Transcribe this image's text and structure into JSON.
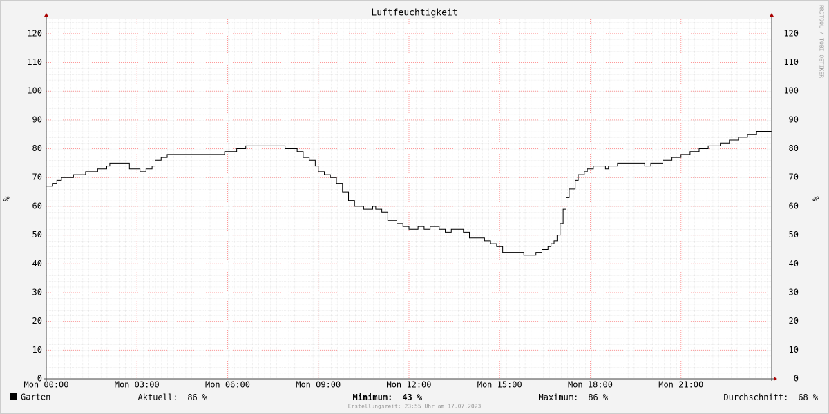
{
  "chart_data": {
    "type": "line",
    "title": "Luftfeuchtigkeit",
    "y_label": "%",
    "side_text": "RRDTOOL / TOBI OETIKER",
    "xlim": [
      0,
      24
    ],
    "xticks": [
      {
        "value": 0,
        "label": "Mon 00:00"
      },
      {
        "value": 3,
        "label": "Mon 03:00"
      },
      {
        "value": 6,
        "label": "Mon 06:00"
      },
      {
        "value": 9,
        "label": "Mon 09:00"
      },
      {
        "value": 12,
        "label": "Mon 12:00"
      },
      {
        "value": 15,
        "label": "Mon 15:00"
      },
      {
        "value": 18,
        "label": "Mon 18:00"
      },
      {
        "value": 21,
        "label": "Mon 21:00"
      }
    ],
    "ylim": [
      0,
      125
    ],
    "yticks": [
      0,
      10,
      20,
      30,
      40,
      50,
      60,
      70,
      80,
      90,
      100,
      110,
      120
    ],
    "grid": true,
    "step": true,
    "series": [
      {
        "name": "Garten",
        "color": "#000000",
        "x": [
          0,
          0.2,
          0.35,
          0.5,
          0.9,
          1.3,
          1.7,
          2.0,
          2.1,
          2.75,
          3.1,
          3.3,
          3.5,
          3.6,
          3.8,
          4.0,
          5.9,
          6.3,
          6.6,
          7.9,
          8.3,
          8.5,
          8.7,
          8.9,
          9.0,
          9.2,
          9.4,
          9.6,
          9.8,
          10.0,
          10.2,
          10.5,
          10.8,
          10.9,
          11.1,
          11.3,
          11.6,
          11.8,
          12.0,
          12.3,
          12.5,
          12.7,
          13.0,
          13.2,
          13.4,
          13.8,
          14.0,
          14.5,
          14.7,
          14.9,
          15.1,
          15.8,
          16.2,
          16.4,
          16.6,
          16.7,
          16.8,
          16.9,
          17.0,
          17.1,
          17.2,
          17.3,
          17.5,
          17.6,
          17.8,
          17.9,
          18.1,
          18.5,
          18.6,
          18.9,
          19.8,
          20.0,
          20.4,
          20.7,
          21.0,
          21.3,
          21.6,
          21.9,
          22.3,
          22.6,
          22.9,
          23.2,
          23.5,
          24.0
        ],
        "values": [
          67,
          68,
          69,
          70,
          71,
          72,
          73,
          74,
          75,
          73,
          72,
          73,
          74,
          76,
          77,
          78,
          79,
          80,
          81,
          80,
          79,
          77,
          76,
          74,
          72,
          71,
          70,
          68,
          65,
          62,
          60,
          59,
          60,
          59,
          58,
          55,
          54,
          53,
          52,
          53,
          52,
          53,
          52,
          51,
          52,
          51,
          49,
          48,
          47,
          46,
          44,
          43,
          44,
          45,
          46,
          47,
          48,
          50,
          54,
          59,
          63,
          66,
          69,
          71,
          72,
          73,
          74,
          73,
          74,
          75,
          74,
          75,
          76,
          77,
          78,
          79,
          80,
          81,
          82,
          83,
          84,
          85,
          86,
          86
        ]
      }
    ],
    "legend": [
      {
        "label": "Aktuell:",
        "value": 86,
        "unit": "%"
      },
      {
        "label": "Minimum:",
        "value": 43,
        "unit": "%"
      },
      {
        "label": "Maximum:",
        "value": 86,
        "unit": "%"
      },
      {
        "label": "Durchschnitt:",
        "value": 68,
        "unit": "%"
      }
    ],
    "footer": "Erstellungszeit: 23:55 Uhr am 17.07.2023"
  }
}
